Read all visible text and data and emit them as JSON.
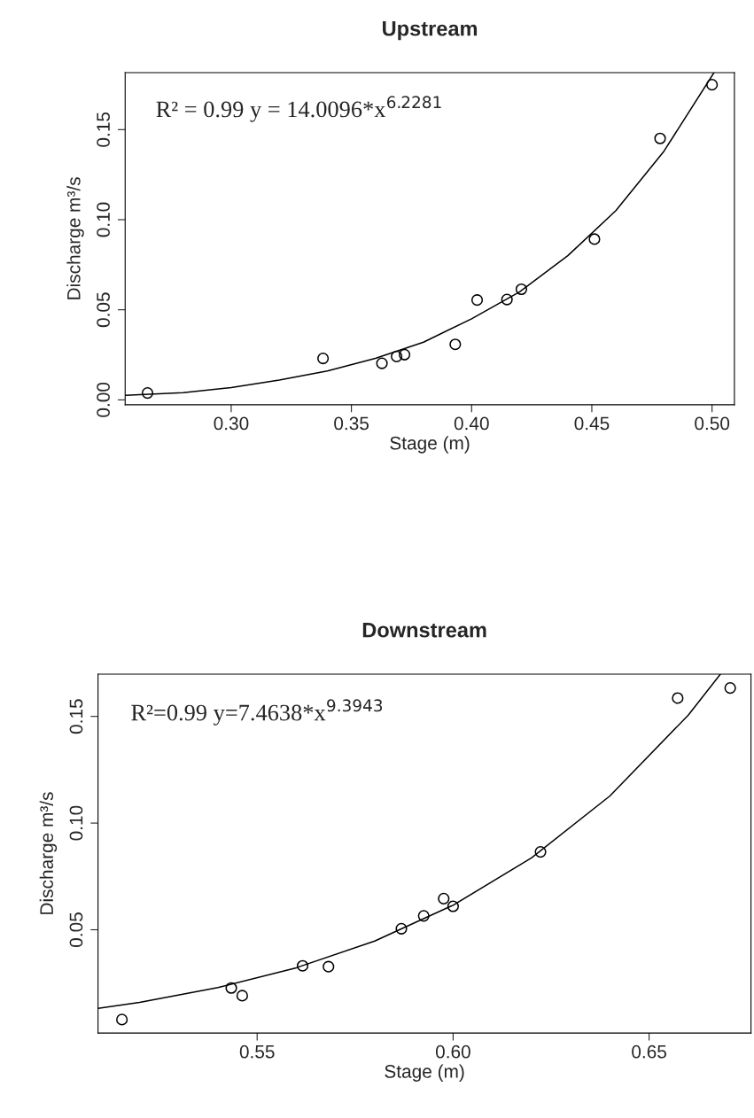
{
  "chart_data": [
    {
      "type": "scatter",
      "title": "Upstream",
      "xlabel": "Stage (m)",
      "ylabel": "Discharge m³/s",
      "xlim": [
        0.2559,
        0.5093
      ],
      "ylim": [
        -0.0027,
        0.1816
      ],
      "xticks": [
        {
          "value": 0.3,
          "label": "0.30"
        },
        {
          "value": 0.35,
          "label": "0.35"
        },
        {
          "value": 0.4,
          "label": "0.40"
        },
        {
          "value": 0.45,
          "label": "0.45"
        },
        {
          "value": 0.5,
          "label": "0.50"
        }
      ],
      "yticks": [
        {
          "value": 0,
          "label": "0.00"
        },
        {
          "value": 0.05,
          "label": "0.05"
        },
        {
          "value": 0.1,
          "label": "0.10"
        },
        {
          "value": 0.15,
          "label": "0.15"
        }
      ],
      "grid": false,
      "annotations": [
        "R² = 0.99 y = 14.0096*x$^{6.2281}$"
      ],
      "series": [
        {
          "color": "#000000",
          "marker": "circle",
          "x": [
            0.2652,
            0.3382,
            0.3627,
            0.3688,
            0.3721,
            0.3932,
            0.4023,
            0.4147,
            0.4207,
            0.4511,
            0.4784,
            0.5
          ],
          "values": [
            0.0038,
            0.023,
            0.0203,
            0.0241,
            0.0251,
            0.0308,
            0.0554,
            0.0557,
            0.0614,
            0.0892,
            0.1451,
            0.1749
          ]
        },
        {
          "type": "line",
          "color": "#000000",
          "marker": "none",
          "line_style": "solid",
          "x": [
            0.2559,
            0.28,
            0.3,
            0.32,
            0.34,
            0.36,
            0.38,
            0.4,
            0.42,
            0.44,
            0.46,
            0.48,
            0.5008
          ],
          "values": [
            0.0025,
            0.004,
            0.0068,
            0.011,
            0.016,
            0.023,
            0.032,
            0.045,
            0.06,
            0.08,
            0.105,
            0.138,
            0.1816
          ]
        }
      ]
    },
    {
      "type": "scatter",
      "title": "Downstream",
      "xlabel": "Stage (m)",
      "ylabel": "Discharge m³/s",
      "xlim": [
        0.5094,
        0.676
      ],
      "ylim": [
        0.0016,
        0.1698
      ],
      "xticks": [
        {
          "value": 0.55,
          "label": "0.55"
        },
        {
          "value": 0.6,
          "label": "0.60"
        },
        {
          "value": 0.65,
          "label": "0.65"
        }
      ],
      "yticks": [
        {
          "value": 0.05,
          "label": "0.05"
        },
        {
          "value": 0.1,
          "label": "0.10"
        },
        {
          "value": 0.15,
          "label": "0.15"
        }
      ],
      "grid": false,
      "annotations": [
        "R²=0.99 y=7.4638*x$^{9.3943}$"
      ],
      "series": [
        {
          "color": "#000000",
          "marker": "circle",
          "x": [
            0.5155,
            0.5434,
            0.5462,
            0.5616,
            0.5682,
            0.5868,
            0.5925,
            0.5976,
            0.6,
            0.6223,
            0.6573,
            0.6707
          ],
          "values": [
            0.0079,
            0.0227,
            0.0191,
            0.0331,
            0.0327,
            0.0505,
            0.0565,
            0.0646,
            0.061,
            0.0865,
            0.1586,
            0.1633
          ]
        },
        {
          "type": "line",
          "color": "#000000",
          "marker": "none",
          "line_style": "solid",
          "x": [
            0.5094,
            0.52,
            0.54,
            0.56,
            0.58,
            0.6,
            0.62,
            0.64,
            0.66,
            0.6682
          ],
          "values": [
            0.0132,
            0.016,
            0.0229,
            0.0322,
            0.0447,
            0.0615,
            0.0837,
            0.1127,
            0.1506,
            0.1698
          ]
        }
      ]
    }
  ]
}
